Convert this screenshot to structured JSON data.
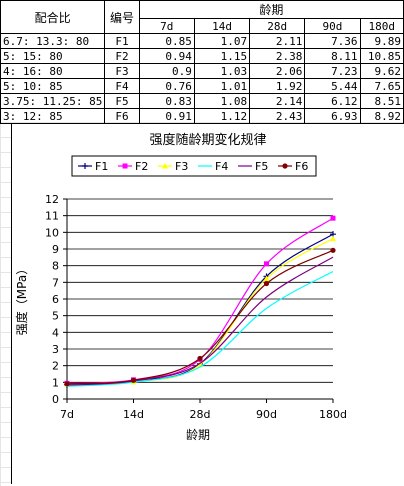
{
  "table": {
    "header_ratio": "配合比",
    "header_code": "编号",
    "header_age": "龄期",
    "ages": [
      "7d",
      "14d",
      "28d",
      "90d",
      "180d"
    ],
    "rows": [
      {
        "ratio": "6.7: 13.3: 80",
        "code": "F1",
        "vals": [
          "0.85",
          "1.07",
          "2.11",
          "7.36",
          "9.89"
        ]
      },
      {
        "ratio": "5: 15: 80",
        "code": "F2",
        "vals": [
          "0.94",
          "1.15",
          "2.38",
          "8.11",
          "10.85"
        ]
      },
      {
        "ratio": "4: 16: 80",
        "code": "F3",
        "vals": [
          "0.9",
          "1.03",
          "2.06",
          "7.23",
          "9.62"
        ]
      },
      {
        "ratio": "5: 10: 85",
        "code": "F4",
        "vals": [
          "0.76",
          "1.01",
          "1.92",
          "5.44",
          "7.65"
        ]
      },
      {
        "ratio": "3.75: 11.25: 85",
        "code": "F5",
        "vals": [
          "0.83",
          "1.08",
          "2.14",
          "6.12",
          "8.51"
        ]
      },
      {
        "ratio": "3: 12: 85",
        "code": "F6",
        "vals": [
          "0.91",
          "1.12",
          "2.43",
          "6.93",
          "8.92"
        ]
      }
    ]
  },
  "chart_data": {
    "type": "line",
    "title": "强度随龄期变化规律",
    "xlabel": "龄期",
    "ylabel": "强度（MPa）",
    "categories": [
      "7d",
      "14d",
      "28d",
      "90d",
      "180d"
    ],
    "ylim": [
      0,
      12
    ],
    "yticks": [
      "0",
      "1",
      "2",
      "3",
      "4",
      "5",
      "6",
      "7",
      "8",
      "9",
      "10",
      "11",
      "12"
    ],
    "grid": true,
    "legend_position": "top",
    "series": [
      {
        "name": "F1",
        "values": [
          0.85,
          1.07,
          2.11,
          7.36,
          9.89
        ],
        "color": "#000080",
        "marker": "plus"
      },
      {
        "name": "F2",
        "values": [
          0.94,
          1.15,
          2.38,
          8.11,
          10.85
        ],
        "color": "#ff00ff",
        "marker": "square"
      },
      {
        "name": "F3",
        "values": [
          0.9,
          1.03,
          2.06,
          7.23,
          9.62
        ],
        "color": "#ffff00",
        "marker": "triangle"
      },
      {
        "name": "F4",
        "values": [
          0.76,
          1.01,
          1.92,
          5.44,
          7.65
        ],
        "color": "#00ffff",
        "marker": "none"
      },
      {
        "name": "F5",
        "values": [
          0.83,
          1.08,
          2.14,
          6.12,
          8.51
        ],
        "color": "#800080",
        "marker": "none"
      },
      {
        "name": "F6",
        "values": [
          0.91,
          1.12,
          2.43,
          6.93,
          8.92
        ],
        "color": "#800000",
        "marker": "circle"
      }
    ]
  }
}
